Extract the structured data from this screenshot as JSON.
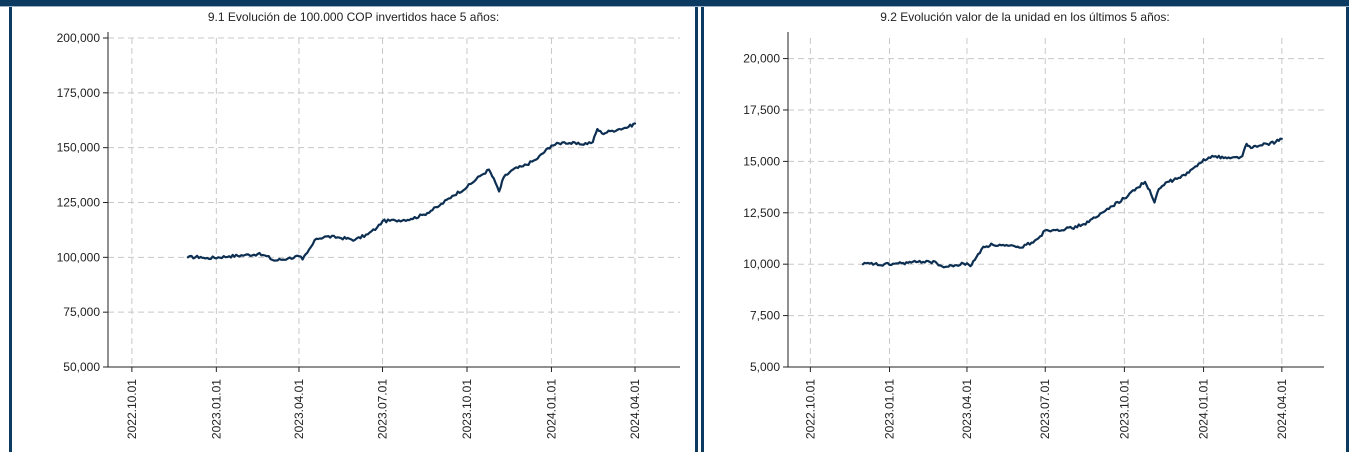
{
  "charts": [
    {
      "title": "9.1 Evolución de 100.000 COP invertidos hace 5 años:",
      "y_ticks": [
        "50,000",
        "75,000",
        "100,000",
        "125,000",
        "150,000",
        "175,000",
        "200,000"
      ],
      "x_ticks": [
        "2022.10.01",
        "2023.01.01",
        "2023.04.01",
        "2023.07.01",
        "2023.10.01",
        "2024.01.01",
        "2024.04.01"
      ]
    },
    {
      "title": "9.2 Evolución valor de la unidad en los últimos 5 años:",
      "y_ticks": [
        "5,000",
        "7,500",
        "10,000",
        "12,500",
        "15,000",
        "17,500",
        "20,000"
      ],
      "x_ticks": [
        "2022.10.01",
        "2023.01.01",
        "2023.04.01",
        "2023.07.01",
        "2023.10.01",
        "2024.01.01",
        "2024.04.01"
      ]
    }
  ],
  "chart_data": [
    {
      "type": "line",
      "title": "9.1 Evolución de 100.000 COP invertidos hace 5 años:",
      "xlabel": "",
      "ylabel": "",
      "ylim": [
        50000,
        200000
      ],
      "xlim": [
        "2022-09-05",
        "2024-05-20"
      ],
      "grid": true,
      "color": "#0d2f52",
      "x": [
        "2022-12-01",
        "2022-12-15",
        "2022-12-20",
        "2023-01-15",
        "2023-02-01",
        "2023-02-15",
        "2023-02-25",
        "2023-03-05",
        "2023-03-20",
        "2023-04-01",
        "2023-04-05",
        "2023-04-10",
        "2023-04-20",
        "2023-05-01",
        "2023-05-15",
        "2023-06-01",
        "2023-06-15",
        "2023-06-25",
        "2023-07-01",
        "2023-07-15",
        "2023-08-01",
        "2023-08-15",
        "2023-09-01",
        "2023-09-15",
        "2023-10-01",
        "2023-10-15",
        "2023-10-25",
        "2023-11-01",
        "2023-11-05",
        "2023-11-10",
        "2023-11-20",
        "2023-12-01",
        "2023-12-15",
        "2024-01-01",
        "2024-01-15",
        "2024-02-01",
        "2024-02-15",
        "2024-02-20",
        "2024-02-25",
        "2024-03-05",
        "2024-03-15",
        "2024-03-25",
        "2024-04-01"
      ],
      "series": [
        {
          "values": [
            100000,
            100200,
            99500,
            100500,
            101000,
            101500,
            100500,
            98500,
            99500,
            100500,
            99000,
            102000,
            108500,
            109500,
            109000,
            108000,
            110500,
            113500,
            116500,
            116800,
            117500,
            119500,
            123500,
            128000,
            132000,
            137000,
            140000,
            134000,
            130000,
            136500,
            140000,
            141500,
            144500,
            151000,
            152500,
            151500,
            152500,
            158500,
            156500,
            157500,
            158500,
            159500,
            161000
          ]
        }
      ]
    },
    {
      "type": "line",
      "title": "9.2 Evolución valor de la unidad en los últimos 5 años:",
      "xlabel": "",
      "ylabel": "",
      "ylim": [
        5000,
        21000
      ],
      "xlim": [
        "2022-09-05",
        "2024-05-20"
      ],
      "grid": true,
      "color": "#0d2f52",
      "x": [
        "2022-12-01",
        "2022-12-15",
        "2022-12-20",
        "2023-01-15",
        "2023-02-01",
        "2023-02-15",
        "2023-02-25",
        "2023-03-05",
        "2023-03-20",
        "2023-04-01",
        "2023-04-05",
        "2023-04-10",
        "2023-04-20",
        "2023-05-01",
        "2023-05-15",
        "2023-06-01",
        "2023-06-15",
        "2023-06-25",
        "2023-07-01",
        "2023-07-15",
        "2023-08-01",
        "2023-08-15",
        "2023-09-01",
        "2023-09-15",
        "2023-10-01",
        "2023-10-15",
        "2023-10-25",
        "2023-11-01",
        "2023-11-05",
        "2023-11-10",
        "2023-11-20",
        "2023-12-01",
        "2023-12-15",
        "2024-01-01",
        "2024-01-15",
        "2024-02-01",
        "2024-02-15",
        "2024-02-20",
        "2024-02-25",
        "2024-03-05",
        "2024-03-15",
        "2024-03-25",
        "2024-04-01"
      ],
      "series": [
        {
          "values": [
            10000,
            10020,
            9950,
            10050,
            10100,
            10150,
            10050,
            9850,
            9950,
            10050,
            9900,
            10200,
            10850,
            10950,
            10900,
            10800,
            11050,
            11350,
            11650,
            11680,
            11750,
            11950,
            12350,
            12800,
            13200,
            13700,
            14000,
            13400,
            13000,
            13650,
            14000,
            14150,
            14450,
            15100,
            15250,
            15150,
            15250,
            15850,
            15650,
            15750,
            15850,
            15950,
            16100
          ]
        }
      ]
    }
  ]
}
